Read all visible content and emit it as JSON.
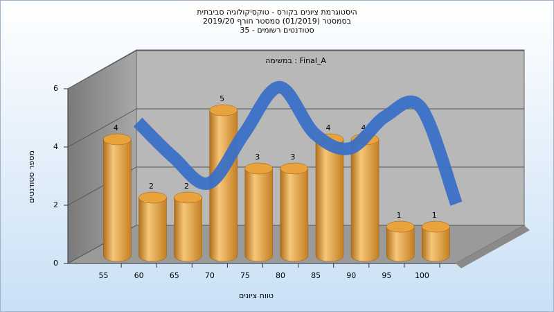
{
  "chart_data": {
    "type": "bar3d",
    "title": "היסטוגרמת ציונים בקורס - טוקסיקולוגיה סביבתית",
    "subtitle": [
      "בסמסטר (01/2019) סמסטר חורף 2019/20",
      "סטודנטים רשומים - 35"
    ],
    "annotation": "במשימה : Final_A",
    "x_label": "טווח ציונים",
    "y_label": "מספר סטודנטים",
    "categories": [
      "55",
      "60",
      "65",
      "70",
      "75",
      "80",
      "85",
      "90",
      "95",
      "100"
    ],
    "series": [
      {
        "type": "bar",
        "color": "#e8a33c",
        "values": [
          4,
          2,
          2,
          5,
          3,
          3,
          4,
          4,
          1,
          1
        ]
      },
      {
        "type": "line",
        "color": "#3a70c6",
        "values": [
          4.2,
          3.0,
          2.1,
          3.8,
          5.4,
          3.8,
          3.3,
          4.4,
          4.7,
          1.4
        ]
      }
    ],
    "ylim": [
      0,
      6
    ],
    "yticks": [
      0,
      2,
      4,
      6
    ],
    "grid": true
  }
}
